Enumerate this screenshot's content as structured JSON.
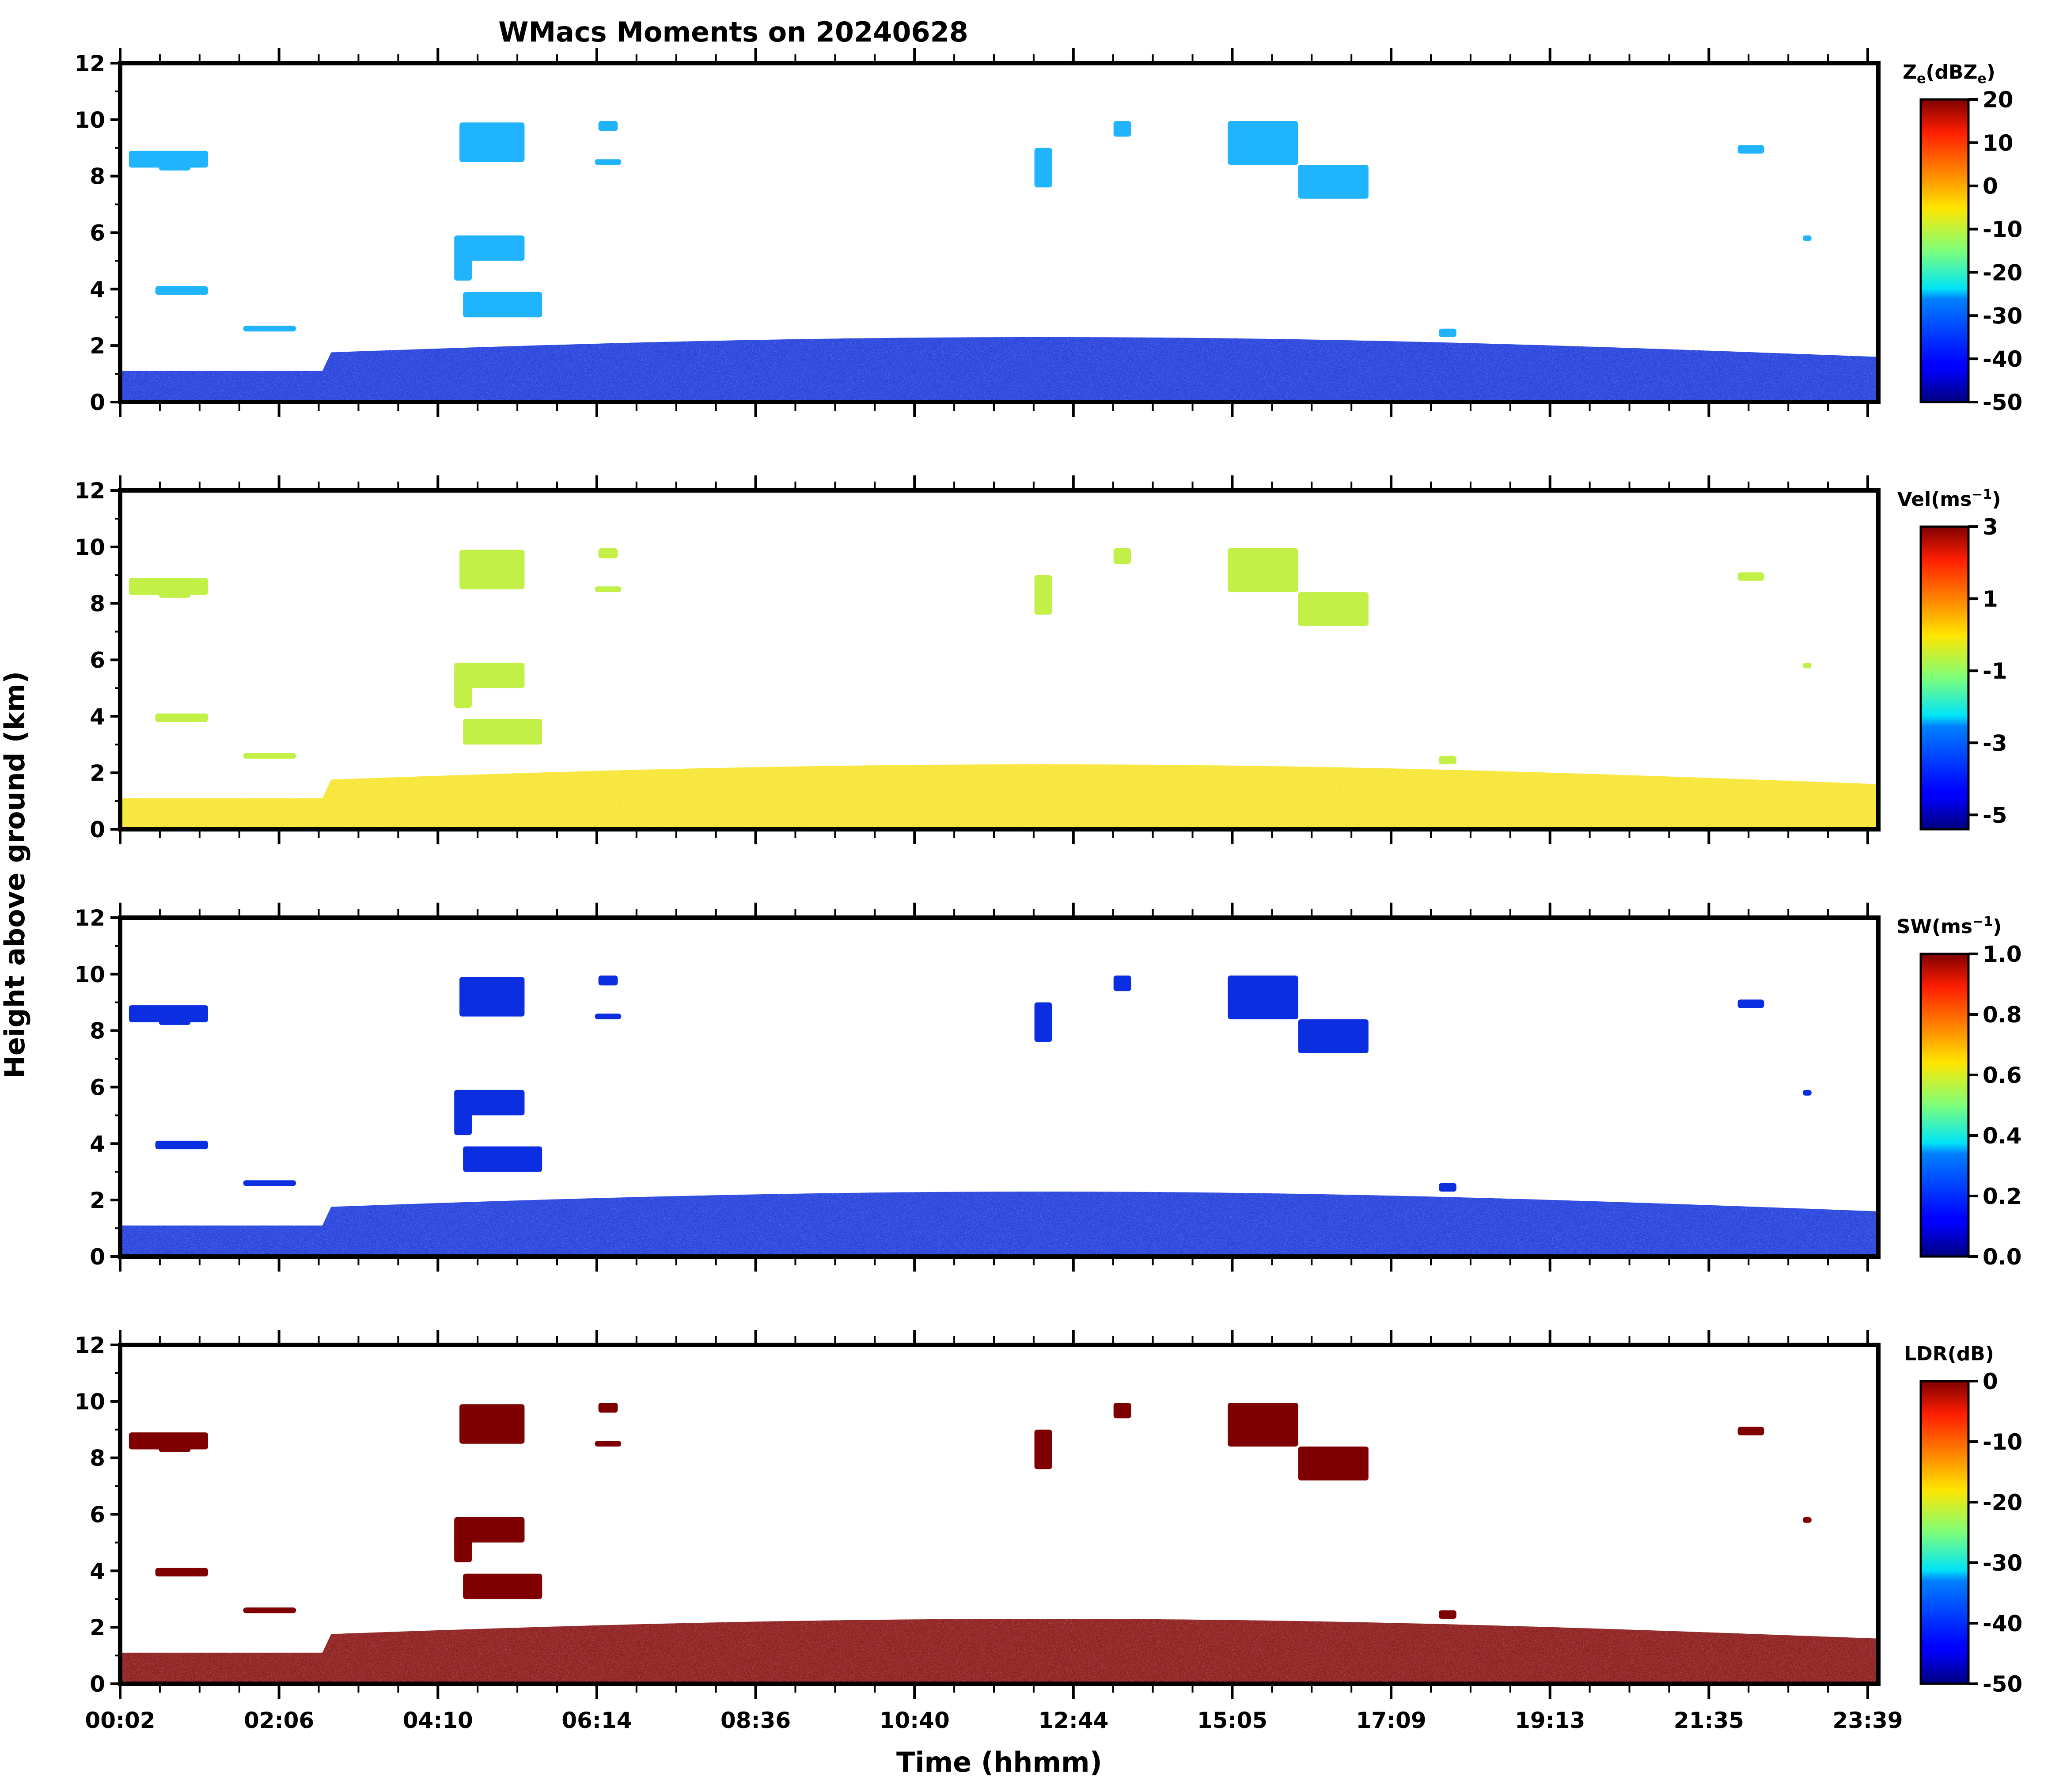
{
  "figure": {
    "title": "WMacs Moments on 20240628",
    "xlabel": "Time (hhmm)",
    "ylabel": "Height above ground (km)"
  },
  "chart_data": {
    "type": "heatmap",
    "title": "WMacs Moments on 20240628",
    "xlabel": "Time (hhmm)",
    "ylabel": "Height above ground (km)",
    "x_ticklabels": [
      "00:02",
      "02:06",
      "04:10",
      "06:14",
      "08:36",
      "10:40",
      "12:44",
      "15:05",
      "17:09",
      "19:13",
      "21:35",
      "23:39"
    ],
    "ylim": [
      0,
      12
    ],
    "yticks": [
      0,
      2,
      4,
      6,
      8,
      10,
      12
    ],
    "colormap": "jet",
    "panels": [
      {
        "variable": "Ze",
        "colorbar_label_main": "Z",
        "colorbar_label_sub": "e",
        "colorbar_label_unit": "(dBZ",
        "colorbar_label_unit_sub": "e",
        "colorbar_label_close": ")",
        "clim": [
          -50,
          20
        ],
        "colorbar_ticks": [
          "20",
          "10",
          "0",
          "-10",
          "-20",
          "-30",
          "-40",
          "-50"
        ],
        "boundary_layer_color": "#0a2ad8",
        "cloud_color": "#20b4ff"
      },
      {
        "variable": "Vel",
        "colorbar_label_main": "Vel(ms",
        "colorbar_label_sup": "−1",
        "colorbar_label_close": ")",
        "clim": [
          -5.4,
          3
        ],
        "colorbar_ticks": [
          "3",
          "1",
          "-1",
          "-3",
          "-5"
        ],
        "boundary_layer_color": "#f6e21a",
        "cloud_color": "#c2f046"
      },
      {
        "variable": "SW",
        "colorbar_label_main": "SW(ms",
        "colorbar_label_sup": "−1",
        "colorbar_label_close": ")",
        "clim": [
          0,
          1
        ],
        "colorbar_ticks": [
          "1.0",
          "0.8",
          "0.6",
          "0.4",
          "0.2",
          "0.0"
        ],
        "boundary_layer_color": "#0a2ad8",
        "cloud_color": "#0b2fe0"
      },
      {
        "variable": "LDR",
        "colorbar_label_main": "LDR(dB)",
        "clim": [
          -50,
          0
        ],
        "colorbar_ticks": [
          "0",
          "-10",
          "-20",
          "-30",
          "-40",
          "-50"
        ],
        "boundary_layer_color": "#7f0000",
        "cloud_color": "#7f0000"
      }
    ]
  }
}
